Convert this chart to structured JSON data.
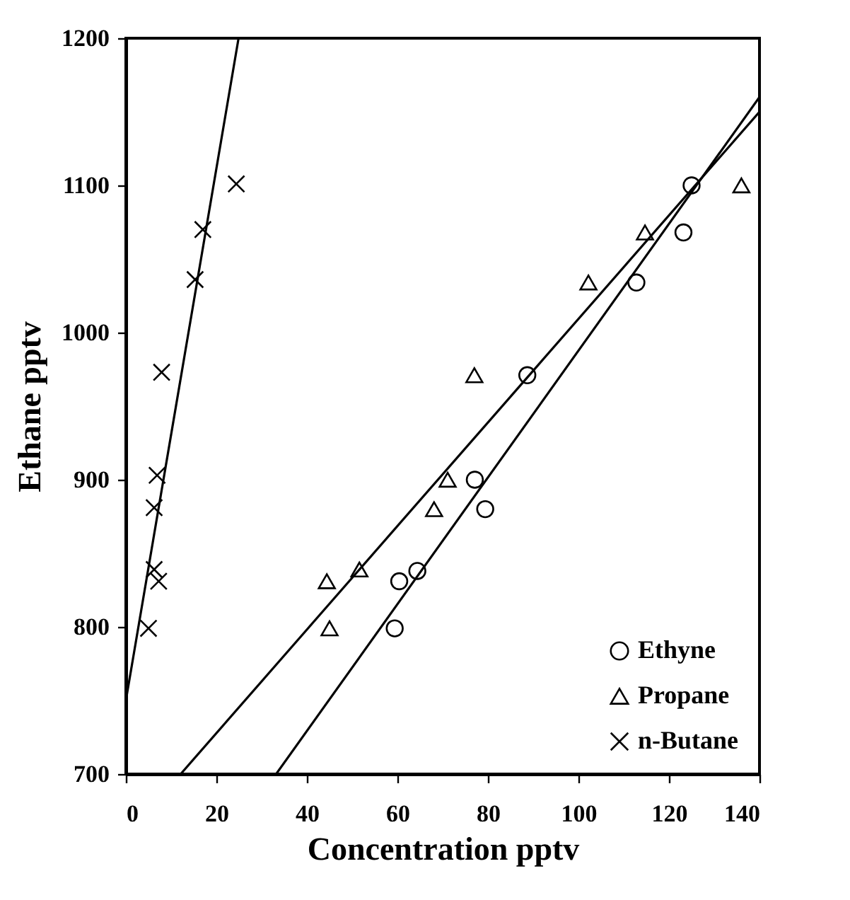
{
  "chart_data": {
    "type": "scatter",
    "xlabel": "Concentration  pptv",
    "ylabel": "Ethane pptv",
    "xlim": [
      0,
      140
    ],
    "xticks": [
      0,
      20,
      40,
      60,
      80,
      100,
      120,
      140
    ],
    "ylim": [
      700,
      1200
    ],
    "yticks": [
      700,
      800,
      900,
      1000,
      1100,
      1200
    ],
    "grid": false,
    "legend": "bottom right",
    "series": [
      {
        "name": "Ethyne",
        "marker": "circle",
        "color": "#000000",
        "x": [
          59.4,
          60.4,
          64.4,
          77.1,
          79.4,
          88.7,
          112.8,
          123.2,
          125
        ],
        "values": [
          799,
          831,
          838,
          900,
          880,
          971,
          1034,
          1068,
          1100
        ]
      },
      {
        "name": "Propane",
        "marker": "triangle",
        "color": "#000000",
        "x": [
          44.4,
          45,
          51.6,
          68.1,
          71.1,
          77.0,
          102.2,
          114.7,
          136
        ],
        "values": [
          831,
          799,
          839,
          880,
          900,
          971,
          1034,
          1068,
          1100
        ]
      },
      {
        "name": "n-Butane",
        "marker": "cross",
        "color": "#000000",
        "x": [
          5.0,
          6.25,
          7.25,
          6.25,
          6.9,
          7.9,
          15.3,
          17,
          24.4
        ],
        "values": [
          799,
          839,
          831,
          881,
          903,
          973,
          1036,
          1070,
          1101
        ]
      },
      {
        "type": "line",
        "color": "#000000",
        "x": [
          33.2,
          140
        ],
        "values": [
          700,
          1160
        ]
      },
      {
        "type": "line",
        "color": "#000000",
        "x": [
          12.1,
          140
        ],
        "values": [
          700,
          1150
        ]
      },
      {
        "type": "line",
        "color": "#000000",
        "x": [
          0,
          24.9
        ],
        "values": [
          750,
          1200
        ]
      }
    ]
  }
}
